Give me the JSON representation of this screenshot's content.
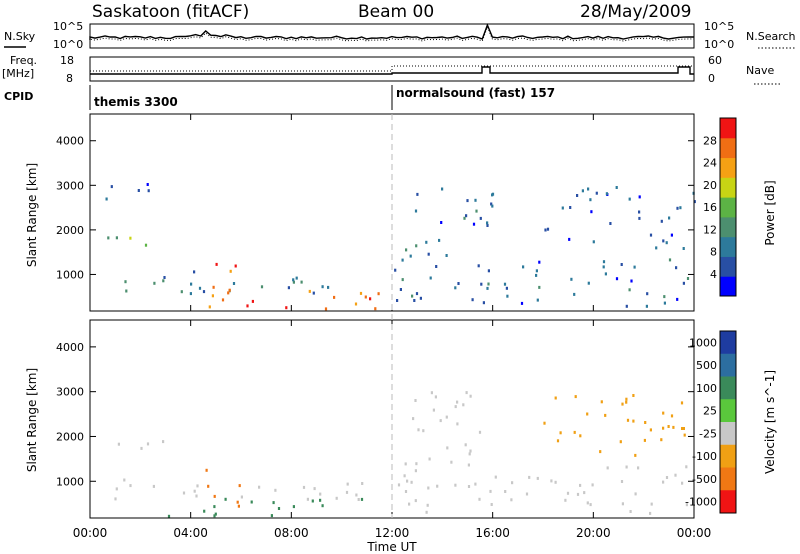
{
  "header": {
    "station": "Saskatoon (fitACF)",
    "beam": "Beam 00",
    "date": "28/May/2009"
  },
  "noise_panel": {
    "left_label": "N.Sky",
    "right_label": "N.Search",
    "left_ticks": [
      "10^5",
      "10^0"
    ],
    "right_ticks": [
      "10^5",
      "10^0"
    ]
  },
  "freq_panel": {
    "left_label": "Freq.",
    "left_unit": "[MHz]",
    "right_label": "Nave",
    "left_ticks": [
      "18",
      "8"
    ],
    "right_ticks": [
      "60",
      "0"
    ]
  },
  "cpid_panel": {
    "label": "CPID",
    "modes": [
      {
        "name": "themis 3300",
        "start": "00:00",
        "end": "12:00"
      },
      {
        "name": "normalsound (fast) 157",
        "start": "12:00",
        "end": "00:00"
      }
    ]
  },
  "colors": {
    "power_scale": [
      "#0000ff",
      "#284fa4",
      "#2d7a9b",
      "#4c8f6f",
      "#5cb345",
      "#c8d414",
      "#f5a114",
      "#f06e14",
      "#f01414"
    ],
    "velocity_scale": [
      "#1e3ca0",
      "#2c6ea0",
      "#3a8a5a",
      "#5ac83c",
      "#c8c8c8",
      "#f0a014",
      "#f07814",
      "#f01414"
    ]
  },
  "chart_data": [
    {
      "type": "heatmap",
      "title": "",
      "xlabel": "Time UT",
      "ylabel": "Slant Range [km]",
      "x_ticks": [
        "00:00",
        "04:00",
        "08:00",
        "12:00",
        "16:00",
        "20:00",
        "00:00"
      ],
      "x_range_hours": [
        0,
        24
      ],
      "y_ticks": [
        1000,
        2000,
        3000,
        4000
      ],
      "ylim": [
        180,
        4600
      ],
      "colorbar": {
        "label": "Power [dB]",
        "ticks": [
          4,
          8,
          12,
          16,
          20,
          24,
          28
        ],
        "range": [
          0,
          32
        ]
      },
      "scatter_regions": [
        {
          "t": [
            0,
            3.2
          ],
          "range": [
            1650,
            1950
          ],
          "value": 14
        },
        {
          "t": [
            0,
            11.5
          ],
          "range": [
            600,
            1100
          ],
          "value": 9
        },
        {
          "t": [
            3,
            11.5
          ],
          "range": [
            250,
            700
          ],
          "value": 26
        },
        {
          "t": [
            4.5,
            6
          ],
          "range": [
            400,
            1400
          ],
          "value": 27
        },
        {
          "t": [
            0.5,
            3.3
          ],
          "range": [
            2600,
            3100
          ],
          "value": 6
        },
        {
          "t": [
            12.5,
            16
          ],
          "range": [
            1400,
            3200
          ],
          "value": 7
        },
        {
          "t": [
            12,
            24
          ],
          "range": [
            300,
            1400
          ],
          "value": 8
        },
        {
          "t": [
            18,
            24
          ],
          "range": [
            1600,
            3000
          ],
          "value": 6
        }
      ]
    },
    {
      "type": "heatmap",
      "title": "",
      "xlabel": "Time UT",
      "ylabel": "Slant Range [km]",
      "x_ticks": [
        "00:00",
        "04:00",
        "08:00",
        "12:00",
        "16:00",
        "20:00",
        "00:00"
      ],
      "x_range_hours": [
        0,
        24
      ],
      "y_ticks": [
        1000,
        2000,
        3000,
        4000
      ],
      "ylim": [
        180,
        4600
      ],
      "colorbar": {
        "label": "Velocity [m s^-1]",
        "ticks": [
          1000,
          500,
          100,
          25,
          -25,
          -100,
          -500,
          -1000
        ]
      },
      "scatter_regions": [
        {
          "t": [
            0,
            3.2
          ],
          "range": [
            1650,
            1950
          ],
          "value": 0
        },
        {
          "t": [
            0,
            11.5
          ],
          "range": [
            600,
            1100
          ],
          "value": 0
        },
        {
          "t": [
            3,
            11.5
          ],
          "range": [
            250,
            700
          ],
          "value": 60
        },
        {
          "t": [
            4.5,
            6
          ],
          "range": [
            400,
            1400
          ],
          "value": -150
        },
        {
          "t": [
            12.5,
            16
          ],
          "range": [
            1400,
            3200
          ],
          "value": 0
        },
        {
          "t": [
            12,
            24
          ],
          "range": [
            300,
            1400
          ],
          "value": 0
        },
        {
          "t": [
            18,
            24
          ],
          "range": [
            1600,
            3000
          ],
          "value": -80
        }
      ]
    }
  ]
}
